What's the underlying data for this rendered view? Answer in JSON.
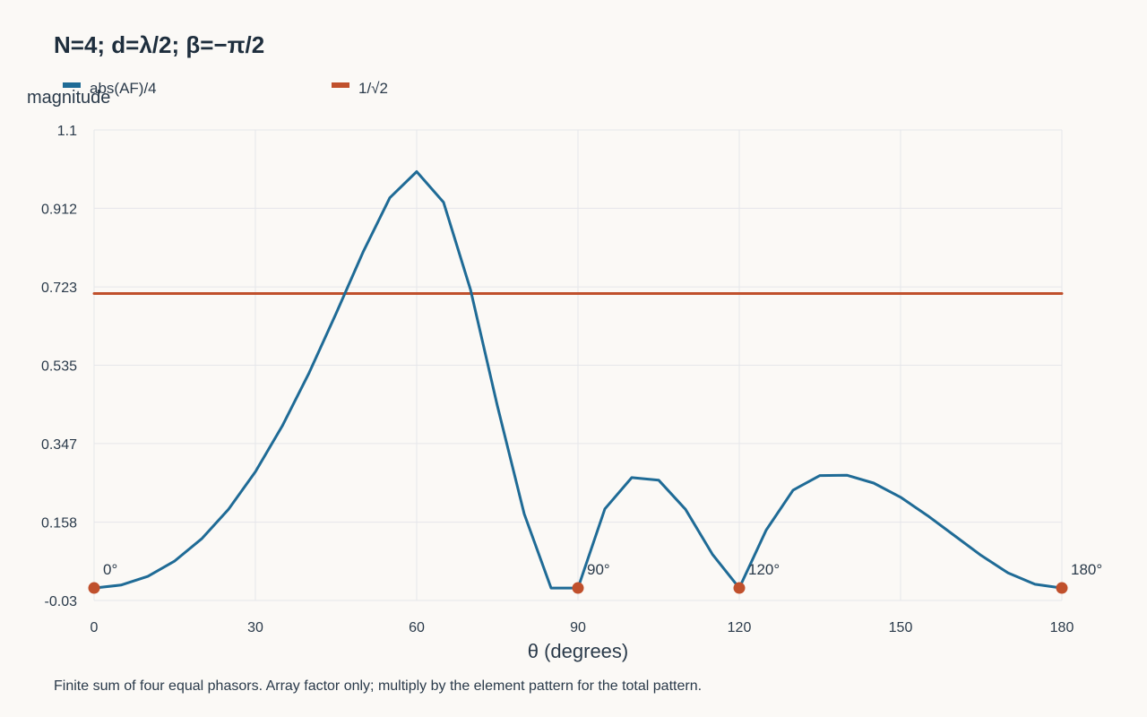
{
  "chart_data": {
    "type": "line",
    "title": "N=4; d=λ/2; β=−π/2",
    "xlabel": "θ (degrees)",
    "ylabel": "magnitude",
    "caption": "Finite sum of four equal phasors. Array factor only; multiply by the element pattern for the total pattern.",
    "xlim": [
      0,
      180
    ],
    "ylim": [
      -0.03,
      1.1
    ],
    "x_ticks": [
      0,
      30,
      60,
      90,
      120,
      150,
      180
    ],
    "y_ticks": [
      -0.03,
      0.158,
      0.347,
      0.535,
      0.723,
      0.912,
      1.1
    ],
    "y_tick_labels": [
      "-0.03",
      "0.158",
      "0.347",
      "0.535",
      "0.723",
      "0.912",
      "1.1"
    ],
    "grid": true,
    "legend_position": "top-left",
    "series": [
      {
        "name": "abs(AF)/4",
        "color": "#1f6b96",
        "x": [
          0,
          5,
          10,
          15,
          20,
          25,
          30,
          35,
          40,
          45,
          50,
          55,
          60,
          65,
          70,
          75,
          80,
          85,
          90,
          95,
          100,
          105,
          110,
          115,
          120,
          125,
          130,
          135,
          140,
          145,
          150,
          155,
          160,
          165,
          170,
          175,
          180
        ],
        "y": [
          0.0,
          0.007,
          0.028,
          0.065,
          0.118,
          0.189,
          0.279,
          0.389,
          0.517,
          0.659,
          0.806,
          0.937,
          1.0,
          0.926,
          0.717,
          0.438,
          0.178,
          0.0,
          0.0,
          0.19,
          0.265,
          0.259,
          0.189,
          0.081,
          0.0,
          0.139,
          0.235,
          0.27,
          0.271,
          0.252,
          0.218,
          0.174,
          0.126,
          0.078,
          0.036,
          0.009,
          0.0
        ]
      },
      {
        "name": "1/√2",
        "color": "#c0502c",
        "x": [
          0,
          180
        ],
        "y": [
          0.7071,
          0.7071
        ]
      }
    ],
    "markers": [
      {
        "x": 0,
        "y": 0,
        "label": "0°"
      },
      {
        "x": 90,
        "y": 0,
        "label": "90°"
      },
      {
        "x": 120,
        "y": 0,
        "label": "120°"
      },
      {
        "x": 180,
        "y": 0,
        "label": "180°"
      }
    ],
    "marker_color": "#c0502c"
  }
}
